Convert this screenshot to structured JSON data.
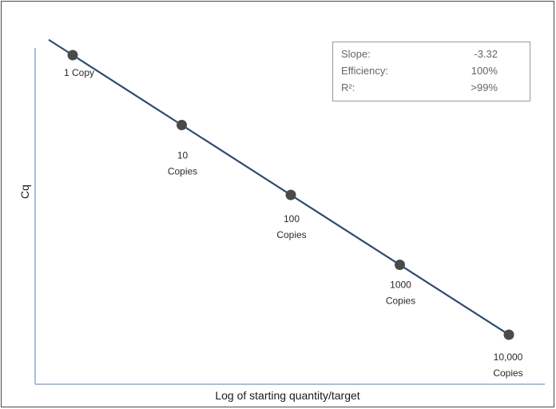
{
  "chart_data": {
    "type": "scatter",
    "xlabel": "Log of starting quantity/target",
    "ylabel": "Cq",
    "x_scale": "log",
    "points": [
      {
        "x": 1,
        "label_lines": [
          "1 Copy"
        ]
      },
      {
        "x": 10,
        "label_lines": [
          "10",
          "Copies"
        ]
      },
      {
        "x": 100,
        "label_lines": [
          "100",
          "Copies"
        ]
      },
      {
        "x": 1000,
        "label_lines": [
          "1000",
          "Copies"
        ]
      },
      {
        "x": 10000,
        "label_lines": [
          "10,000",
          "Copies"
        ]
      }
    ],
    "slope": -3.32,
    "trendline": true,
    "grid": false,
    "colors": {
      "line": "#2f4a73",
      "point": "#4a4a4a",
      "axis": "#a9bfe0"
    }
  },
  "stats_box": {
    "rows": [
      {
        "key": "Slope:",
        "value": "-3.32"
      },
      {
        "key": "Efficiency:",
        "value": "100%"
      },
      {
        "key": "R²:",
        "value": ">99%"
      }
    ]
  }
}
